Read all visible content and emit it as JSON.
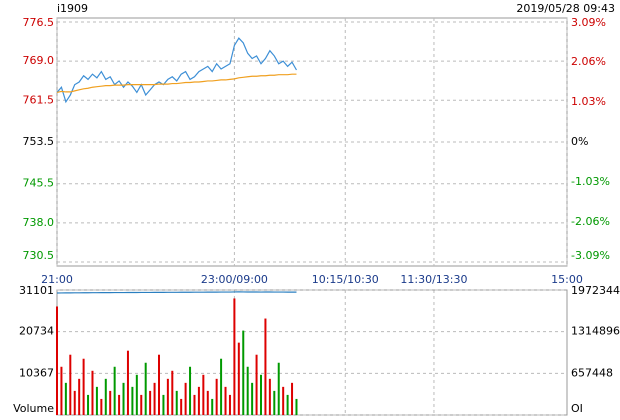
{
  "header": {
    "symbol": "i1909",
    "datetime": "2019/05/28 09:43"
  },
  "chart_data": [
    {
      "type": "line",
      "x": [
        0,
        3,
        6,
        9,
        12,
        15,
        18,
        21,
        24,
        27,
        30,
        33,
        36,
        39,
        42,
        45,
        48,
        51,
        54,
        57,
        60,
        63,
        66,
        69,
        72,
        75,
        78,
        81,
        84,
        87,
        90,
        93,
        96,
        99,
        102,
        105,
        108,
        111,
        114,
        117,
        120,
        123,
        126,
        129,
        132,
        135,
        138,
        141,
        144,
        147,
        150,
        153,
        156,
        159,
        162
      ],
      "xlim": [
        0,
        345
      ],
      "xticks": [
        {
          "value": 0,
          "label": "21:00"
        },
        {
          "value": 120,
          "label": "23:00/09:00"
        },
        {
          "value": 195,
          "label": "10:15/10:30"
        },
        {
          "value": 255,
          "label": "11:30/13:30"
        },
        {
          "value": 345,
          "label": "15:00"
        }
      ],
      "ylim": [
        730.5,
        776.5
      ],
      "yticks": [
        730.5,
        {
          "value": 738,
          "label": "738.0"
        },
        745.5,
        753.5,
        761.5,
        {
          "value": 769,
          "label": "769.0"
        },
        776.5
      ],
      "y2lim": [
        -3.09,
        3.09
      ],
      "y2ticks": [
        {
          "value": -3.09,
          "label": "-3.09%"
        },
        {
          "value": -2.06,
          "label": "-2.06%"
        },
        {
          "value": -1.03,
          "label": "-1.03%"
        },
        {
          "value": 0,
          "label": "0%"
        },
        {
          "value": 1.03,
          "label": "1.03%"
        },
        {
          "value": 2.06,
          "label": "2.06%"
        },
        {
          "value": 3.09,
          "label": "3.09%"
        }
      ],
      "up_color": "#cc0000",
      "flat_color": "#000000",
      "down_color": "#009900",
      "grid": true,
      "series": [
        {
          "color": "#3d8fd6",
          "values": [
            763.0,
            764.0,
            761.2,
            762.5,
            764.5,
            765.0,
            766.2,
            765.5,
            766.5,
            765.8,
            767.0,
            765.5,
            766.0,
            764.5,
            765.2,
            764.0,
            765.0,
            764.2,
            763.0,
            764.5,
            762.5,
            763.5,
            764.5,
            765.0,
            764.5,
            765.5,
            766.0,
            765.2,
            766.5,
            767.0,
            765.5,
            766.0,
            767.0,
            767.5,
            768.0,
            767.0,
            768.5,
            767.5,
            768.0,
            768.5,
            772.0,
            773.4,
            772.5,
            770.5,
            769.5,
            770.0,
            768.5,
            769.5,
            771.0,
            770.0,
            768.5,
            769.0,
            768.0,
            768.8,
            767.3
          ]
        },
        {
          "color": "#f0a020",
          "values": [
            763.0,
            763.2,
            763.1,
            763.1,
            763.3,
            763.5,
            763.7,
            763.8,
            764.0,
            764.1,
            764.2,
            764.3,
            764.3,
            764.4,
            764.4,
            764.4,
            764.5,
            764.5,
            764.5,
            764.5,
            764.5,
            764.5,
            764.5,
            764.6,
            764.6,
            764.6,
            764.7,
            764.7,
            764.8,
            764.9,
            764.9,
            765.0,
            765.0,
            765.1,
            765.2,
            765.2,
            765.3,
            765.4,
            765.4,
            765.5,
            765.6,
            765.8,
            765.9,
            766.0,
            766.1,
            766.1,
            766.2,
            766.2,
            766.3,
            766.3,
            766.4,
            766.4,
            766.4,
            766.5,
            766.5
          ]
        }
      ]
    },
    {
      "type": "bar",
      "x": [
        0,
        3,
        6,
        9,
        12,
        15,
        18,
        21,
        24,
        27,
        30,
        33,
        36,
        39,
        42,
        45,
        48,
        51,
        54,
        57,
        60,
        63,
        66,
        69,
        72,
        75,
        78,
        81,
        84,
        87,
        90,
        93,
        96,
        99,
        102,
        105,
        108,
        111,
        114,
        117,
        120,
        123,
        126,
        129,
        132,
        135,
        138,
        141,
        144,
        147,
        150,
        153,
        156,
        159,
        162
      ],
      "xlim": [
        0,
        345
      ],
      "ylim": [
        0,
        31101
      ],
      "yticks": [
        {
          "value": 0,
          "label": "Volume"
        },
        10367,
        20734,
        31101
      ],
      "y2lim": [
        0,
        1972344
      ],
      "y2ticks": [
        {
          "value": 0,
          "label": "OI"
        },
        657448,
        1314896,
        1972344
      ],
      "grid": true,
      "up_color": "#dd0000",
      "down_color": "#009900",
      "series": [
        {
          "values": [
            27000,
            12000,
            8000,
            15000,
            6000,
            9000,
            14000,
            5000,
            11000,
            7000,
            4000,
            9000,
            6000,
            12000,
            5000,
            8000,
            16000,
            7000,
            10000,
            5000,
            13000,
            6000,
            8000,
            15000,
            5000,
            9000,
            11000,
            6000,
            4000,
            8000,
            12000,
            5000,
            7000,
            10000,
            6000,
            4000,
            9000,
            14000,
            7000,
            5000,
            29000,
            18000,
            21000,
            12000,
            8000,
            15000,
            10000,
            24000,
            9000,
            6000,
            13000,
            7000,
            5000,
            8000,
            4000
          ]
        },
        {
          "axis": "y2",
          "color": "#2a7fc0",
          "values": [
            1925000,
            1926000,
            1927000,
            1927000,
            1928000,
            1928000,
            1929000,
            1929000,
            1930000,
            1930000,
            1931000,
            1931000,
            1931000,
            1932000,
            1932000,
            1932000,
            1933000,
            1933000,
            1933000,
            1934000,
            1934000,
            1934000,
            1935000,
            1935000,
            1935000,
            1936000,
            1936000,
            1936000,
            1937000,
            1937000,
            1937000,
            1938000,
            1938000,
            1938000,
            1939000,
            1939000,
            1939000,
            1940000,
            1940000,
            1940000,
            1942000,
            1943000,
            1942000,
            1941000,
            1941000,
            1941000,
            1940000,
            1941000,
            1941000,
            1940000,
            1940000,
            1940000,
            1939000,
            1939000,
            1939000
          ]
        }
      ]
    }
  ]
}
